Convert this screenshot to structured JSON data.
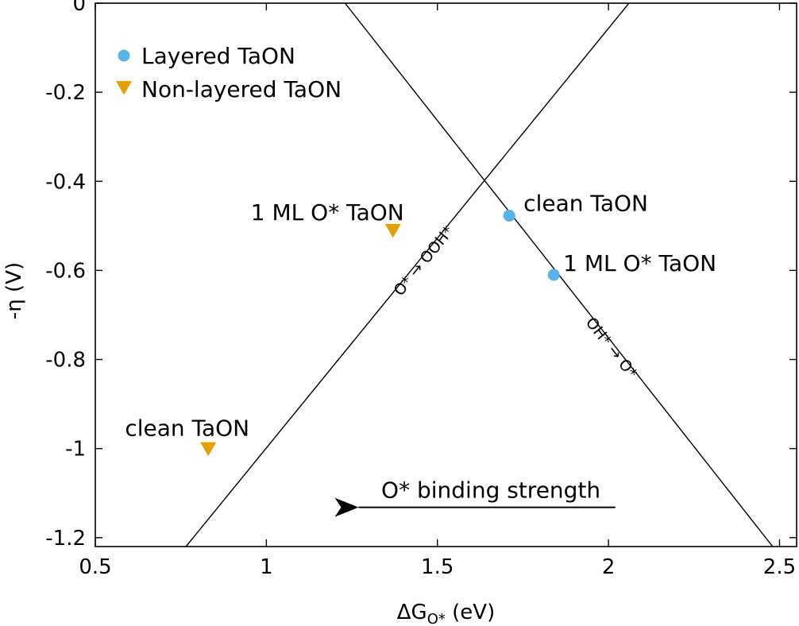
{
  "chart_data": {
    "type": "scatter",
    "xlabel": "ΔG",
    "xlabel_sub": "O*",
    "xlabel_unit": " (eV)",
    "ylabel": "-η (V)",
    "xlim": [
      0.5,
      2.55
    ],
    "ylim": [
      -1.22,
      0
    ],
    "xticks": [
      0.5,
      1,
      1.5,
      2,
      2.5
    ],
    "xtick_labels": [
      "0.5",
      "1",
      "1.5",
      "2",
      "2.5"
    ],
    "yticks": [
      0,
      -0.2,
      -0.4,
      -0.6,
      -0.8,
      -1,
      -1.2
    ],
    "ytick_labels": [
      "0",
      "-0.2",
      "-0.4",
      "-0.6",
      "-0.8",
      "-1",
      "-1.2"
    ],
    "grid": false,
    "legend_position": "top-left",
    "series": [
      {
        "name": "Layered TaON",
        "marker": "circle",
        "color": "#56b4e9",
        "points": [
          {
            "x": 1.71,
            "y": -0.477,
            "label": "clean TaON"
          },
          {
            "x": 1.84,
            "y": -0.61,
            "label": "1 ML O* TaON"
          }
        ]
      },
      {
        "name": "Non-layered TaON",
        "marker": "triangle-down",
        "color": "#e69f00",
        "points": [
          {
            "x": 0.83,
            "y": -1.0,
            "label": "clean TaON"
          },
          {
            "x": 1.37,
            "y": -0.51,
            "label": "1 ML O* TaON"
          }
        ]
      }
    ],
    "lines": [
      {
        "label": "O* → OOH*",
        "x": [
          0.765,
          2.06
        ],
        "y": [
          -1.22,
          0.0
        ]
      },
      {
        "label": "OH* → O*",
        "x": [
          1.23,
          2.48
        ],
        "y": [
          0.0,
          -1.22
        ]
      }
    ],
    "annotation_arrow": {
      "label": "O* binding strength",
      "from": [
        2.02,
        -1.132
      ],
      "to": [
        1.2,
        -1.132
      ]
    }
  }
}
